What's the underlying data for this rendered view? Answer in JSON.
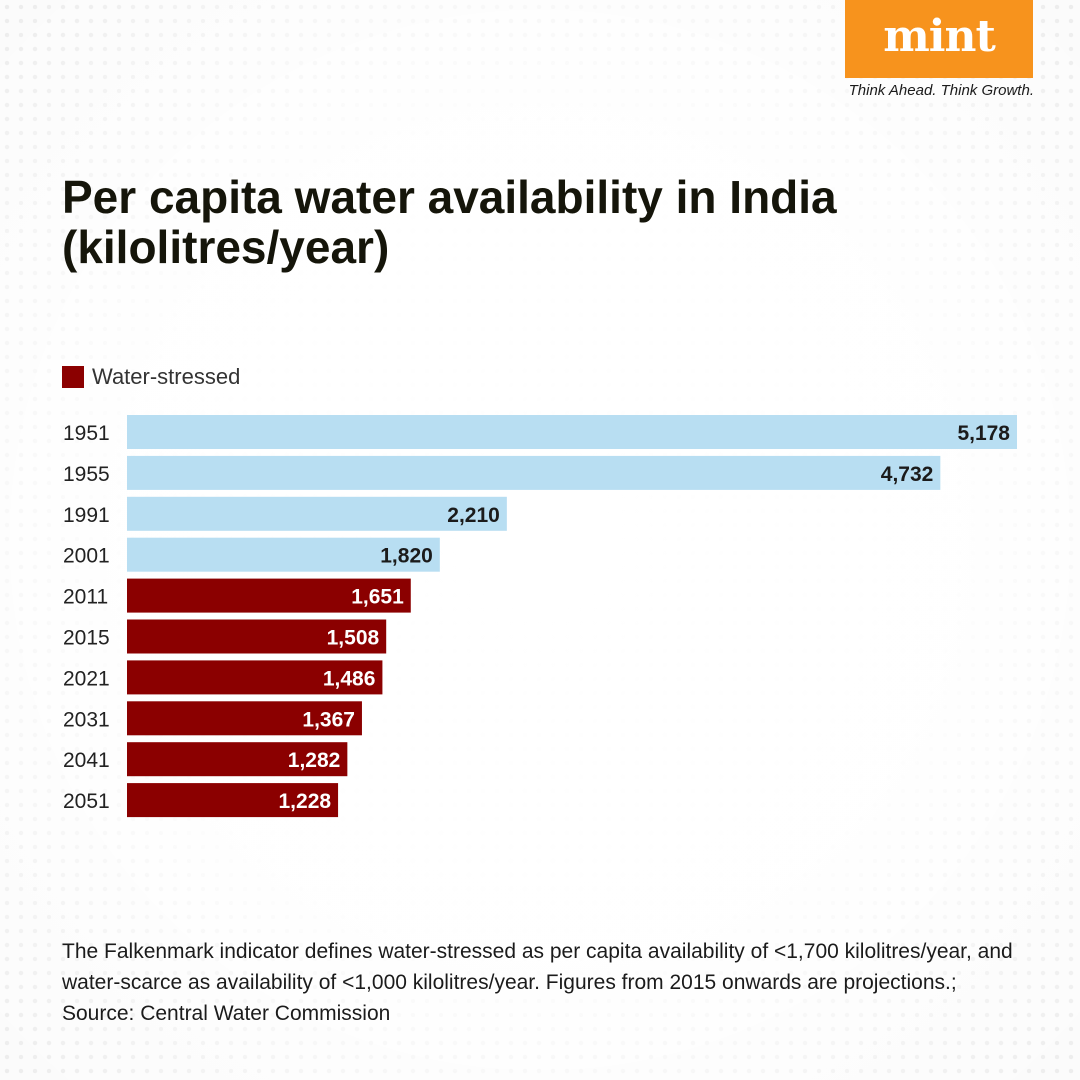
{
  "brand": {
    "logo": "mint",
    "tagline": "Think Ahead. Think Growth.",
    "logo_color": "#f7931d"
  },
  "title": "Per capita water availability in India (kilolitres/year)",
  "legend": {
    "label": "Water-stressed",
    "color": "#8b0000"
  },
  "chart_data": {
    "type": "bar",
    "orientation": "horizontal",
    "title": "Per capita water availability in India (kilolitres/year)",
    "categories": [
      "1951",
      "1955",
      "1991",
      "2001",
      "2011",
      "2015",
      "2021",
      "2031",
      "2041",
      "2051"
    ],
    "values": [
      5178,
      4732,
      2210,
      1820,
      1651,
      1508,
      1486,
      1367,
      1282,
      1228
    ],
    "value_labels": [
      "5,178",
      "4,732",
      "2,210",
      "1,820",
      "1,651",
      "1,508",
      "1,486",
      "1,367",
      "1,282",
      "1,228"
    ],
    "water_stressed": [
      false,
      false,
      false,
      false,
      true,
      true,
      true,
      true,
      true,
      true
    ],
    "colors": {
      "normal": "#b8def2",
      "stressed": "#8b0000",
      "label_on_normal": "#1b1b1b",
      "label_on_stressed": "#ffffff"
    },
    "xlim": [
      0,
      5178
    ],
    "grid": false,
    "legend_position": "top-left"
  },
  "footnote": "The Falkenmark indicator defines water-stressed as per capita availability of <1,700 kilolitres/year, and water-scarce as availability of <1,000 kilolitres/year. Figures from 2015 onwards are projections.; Source: Central Water Commission"
}
